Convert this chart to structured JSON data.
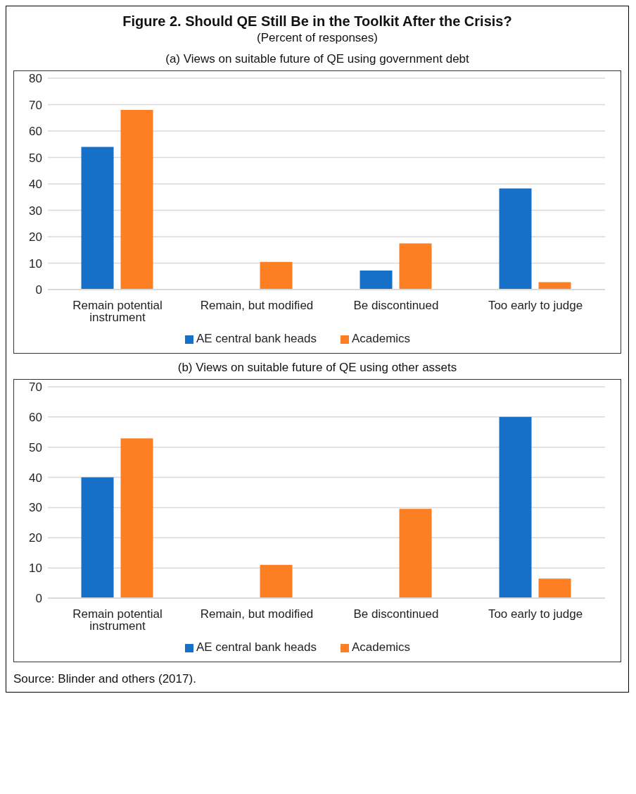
{
  "chart_data": [
    {
      "type": "bar",
      "title": "Figure 2. Should QE Still Be in the Toolkit After the Crisis?",
      "subtitle": "(Percent of responses)",
      "annotations": [
        "(a) Views on suitable future of QE using government debt"
      ],
      "categories": [
        "Remain potential instrument",
        "Remain, but modified",
        "Be discontinued",
        "Too early to judge"
      ],
      "series": [
        {
          "name": "AE central bank heads",
          "color": "#1670c8",
          "values": [
            54,
            0,
            7.2,
            38.3
          ]
        },
        {
          "name": "Academics",
          "color": "#fd7f23",
          "values": [
            68,
            10.5,
            17.5,
            2.8
          ]
        }
      ],
      "ylim": [
        0,
        80
      ],
      "yticks": [
        0,
        10,
        20,
        30,
        40,
        50,
        60,
        70,
        80
      ],
      "grid": "y",
      "legend": "bottom"
    },
    {
      "type": "bar",
      "title": "(b) Views on suitable future of QE using other assets",
      "annotations": [
        "Source: Blinder and others (2017)."
      ],
      "categories": [
        "Remain potential instrument",
        "Remain, but modified",
        "Be discontinued",
        "Too early to judge"
      ],
      "series": [
        {
          "name": "AE central bank heads",
          "color": "#1670c8",
          "values": [
            40,
            0,
            0,
            60
          ]
        },
        {
          "name": "Academics",
          "color": "#fd7f23",
          "values": [
            52.9,
            11,
            29.6,
            6.5
          ]
        }
      ],
      "ylim": [
        0,
        70
      ],
      "yticks": [
        0,
        10,
        20,
        30,
        40,
        50,
        60,
        70
      ],
      "grid": "y",
      "legend": "bottom"
    }
  ]
}
